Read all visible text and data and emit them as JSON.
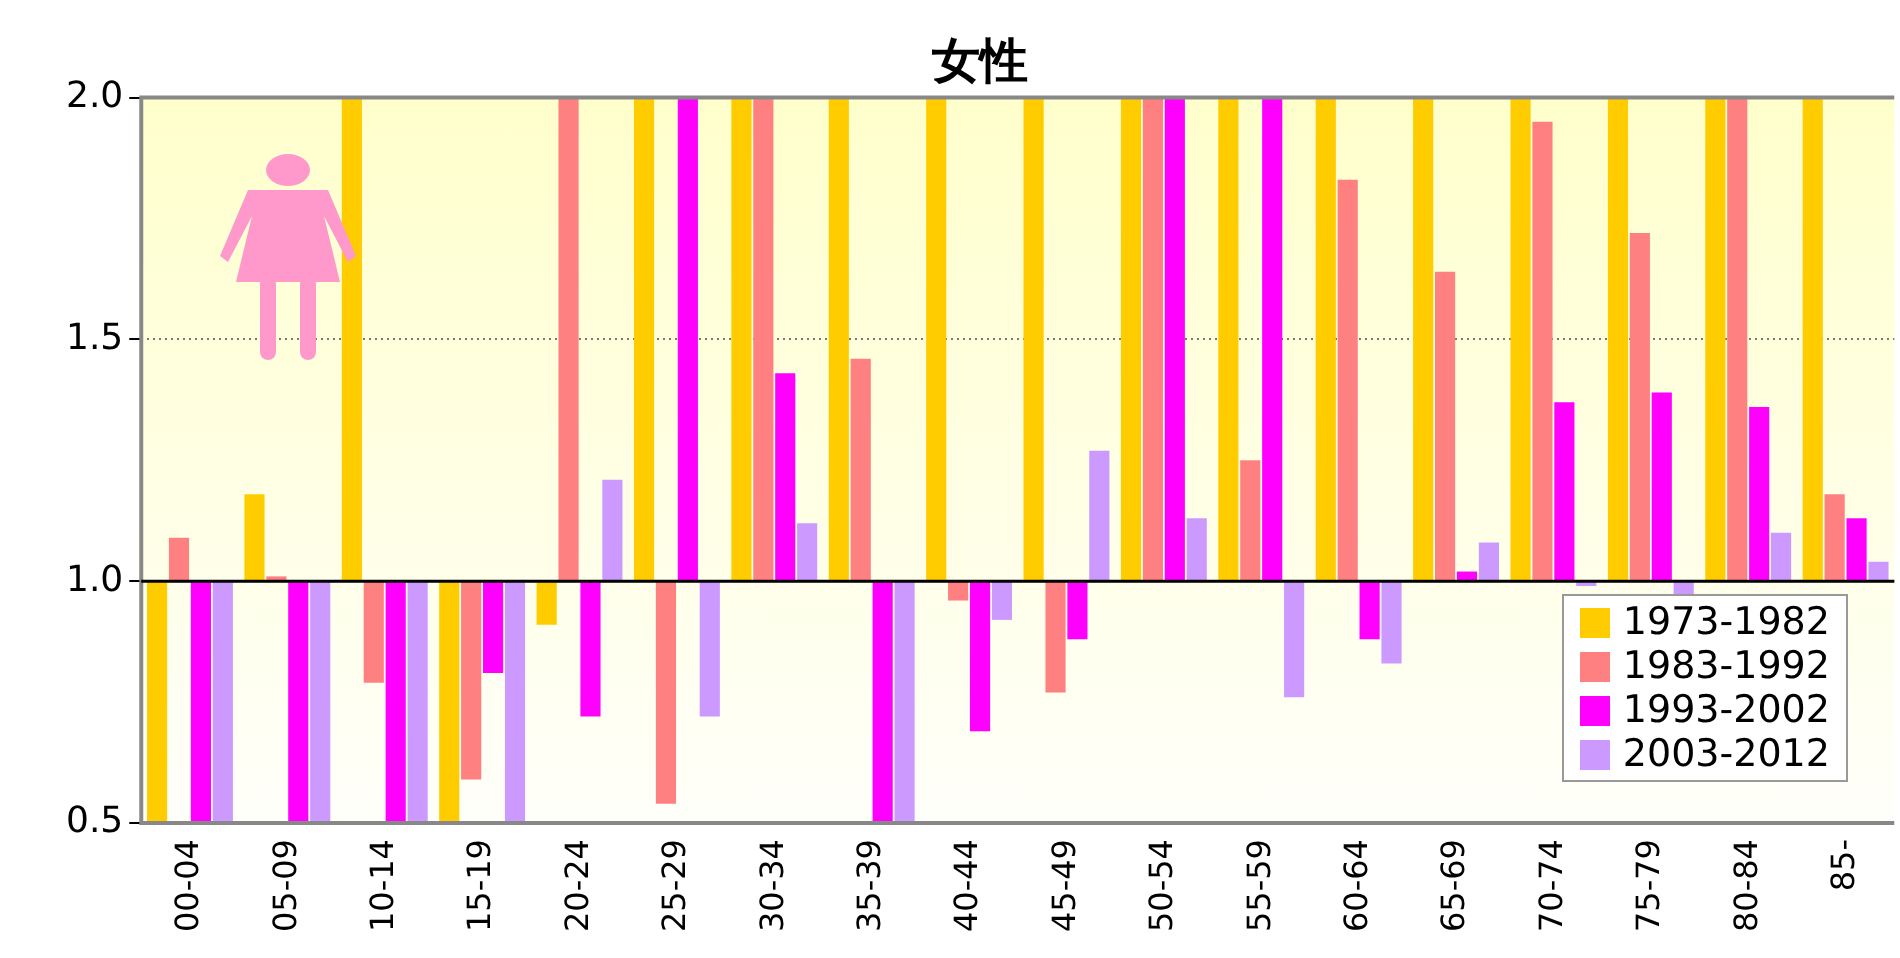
{
  "chart_data": {
    "type": "bar",
    "title": "女性",
    "categories": [
      "00-04",
      "05-09",
      "10-14",
      "15-19",
      "20-24",
      "25-29",
      "30-34",
      "35-39",
      "40-44",
      "45-49",
      "50-54",
      "55-59",
      "60-64",
      "65-69",
      "70-74",
      "75-79",
      "80-84",
      "85-"
    ],
    "series": [
      {
        "name": "1973-1982",
        "color": "#ffcc00",
        "base": [
          1,
          1,
          1,
          1,
          1,
          1,
          1,
          1,
          1,
          1,
          1,
          1,
          1,
          1,
          1,
          1,
          1,
          1
        ],
        "values": [
          -0.5,
          0.18,
          1.0,
          -0.5,
          -0.09,
          1.0,
          1.0,
          1.0,
          1.0,
          1.0,
          1.0,
          1.0,
          1.0,
          1.0,
          1.0,
          1.0,
          1.0,
          1.0
        ]
      },
      {
        "name": "1983-1992",
        "color": "#ff8080",
        "base": [
          1,
          1,
          1,
          1,
          1,
          1,
          1,
          1,
          1,
          1,
          1,
          1,
          1,
          1,
          1,
          1,
          1,
          1
        ],
        "values": [
          0.09,
          0.01,
          -0.21,
          -0.41,
          1.0,
          -0.46,
          1.0,
          0.46,
          -0.04,
          -0.23,
          1.0,
          0.25,
          0.83,
          0.64,
          0.95,
          0.72,
          1.0,
          0.18
        ]
      },
      {
        "name": "1993-2002",
        "color": "#ff00ff",
        "base": [
          1,
          1,
          1,
          1,
          1,
          1,
          1,
          1,
          1,
          1,
          1,
          1,
          1,
          1,
          1,
          1,
          1,
          1
        ],
        "values": [
          -0.5,
          -0.5,
          -0.5,
          -0.19,
          -0.28,
          1.0,
          0.43,
          -0.5,
          -0.31,
          -0.12,
          1.0,
          1.0,
          -0.12,
          0.02,
          0.37,
          0.39,
          0.36,
          0.13
        ]
      },
      {
        "name": "2003-2012",
        "color": "#cc99ff",
        "base": [
          1,
          1,
          1,
          1,
          1,
          1,
          1,
          1,
          1,
          1,
          1,
          1,
          1,
          1,
          1,
          1,
          1,
          1
        ],
        "values": [
          -0.5,
          -0.5,
          -0.5,
          -0.5,
          0.21,
          -0.28,
          0.12,
          -0.5,
          -0.08,
          0.27,
          0.13,
          -0.24,
          -0.17,
          0.08,
          -0.01,
          -0.03,
          0.1,
          0.04
        ]
      }
    ],
    "ylim": [
      0.5,
      2.0
    ],
    "yticks": [
      {
        "value": 0.5,
        "label": "0.5"
      },
      {
        "value": 1,
        "label": "1.0"
      },
      {
        "value": 1.5,
        "label": "1.5"
      },
      {
        "value": 2,
        "label": "2.0"
      }
    ],
    "ref_lines": [
      {
        "axis": "y",
        "value": 1,
        "color": "#000000"
      }
    ],
    "grid": "y",
    "line_style": "dotted",
    "legend": "bottom right"
  }
}
